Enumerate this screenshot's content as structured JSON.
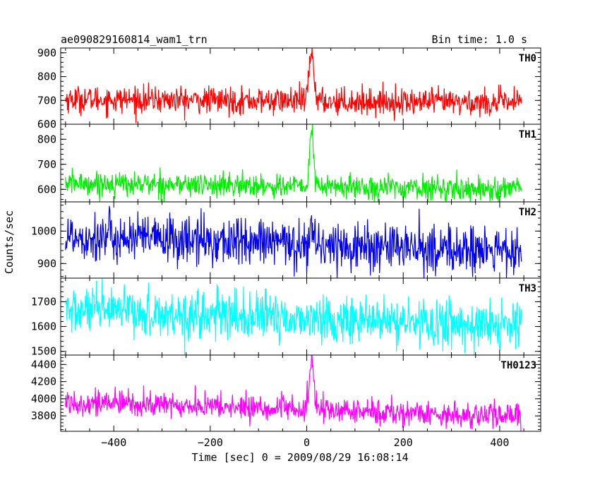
{
  "header": {
    "source_name": "ae090829160814_wam1_trn",
    "bin_time": "Bin time: 1.0 s"
  },
  "axes": {
    "ylabel": "Counts/sec",
    "xlabel": "Time [sec] 0 = 2009/08/29 16:08:14"
  },
  "chart_data": {
    "type": "line",
    "x": {
      "start": -500,
      "end": 445,
      "step": 1.0
    },
    "xlim": [
      -510,
      485
    ],
    "xticks": [
      -400,
      -200,
      0,
      200,
      400
    ],
    "xtick_labels": [
      "−400",
      "−200",
      "0",
      "200",
      "400"
    ],
    "event_time": 10,
    "panels": [
      {
        "name": "TH0",
        "color": "#ff0000",
        "ylim": [
          600,
          920
        ],
        "yticks": [
          600,
          700,
          800,
          900
        ],
        "ytick_labels": [
          "600",
          "700",
          "800",
          "900"
        ],
        "baseline_start": 705,
        "baseline_end": 690,
        "noise": 28,
        "peak": 205,
        "peak_width": 5
      },
      {
        "name": "TH1",
        "color": "#00ee00",
        "ylim": [
          550,
          860
        ],
        "yticks": [
          600,
          700,
          800
        ],
        "ytick_labels": [
          "600",
          "700",
          "800"
        ],
        "baseline_start": 625,
        "baseline_end": 600,
        "noise": 24,
        "peak": 225,
        "peak_width": 4
      },
      {
        "name": "TH2",
        "color": "#0000ee",
        "ylim": [
          855,
          1090
        ],
        "yticks": [
          900,
          1000
        ],
        "ytick_labels": [
          "900",
          "1000"
        ],
        "baseline_start": 985,
        "baseline_end": 935,
        "noise": 38,
        "peak": 75,
        "peak_width": 3
      },
      {
        "name": "TH3",
        "color": "#00ffff",
        "ylim": [
          1485,
          1795
        ],
        "yticks": [
          1500,
          1600,
          1700
        ],
        "ytick_labels": [
          "1500",
          "1600",
          "1700"
        ],
        "baseline_start": 1665,
        "baseline_end": 1600,
        "noise": 48,
        "peak": 0,
        "peak_width": 3
      },
      {
        "name": "TH0123",
        "color": "#ff00ff",
        "ylim": [
          3620,
          4510
        ],
        "yticks": [
          3800,
          4000,
          4200,
          4400
        ],
        "ytick_labels": [
          "3800",
          "4000",
          "4200",
          "4400"
        ],
        "baseline_start": 3965,
        "baseline_end": 3790,
        "noise": 75,
        "peak": 520,
        "peak_width": 5
      }
    ]
  }
}
